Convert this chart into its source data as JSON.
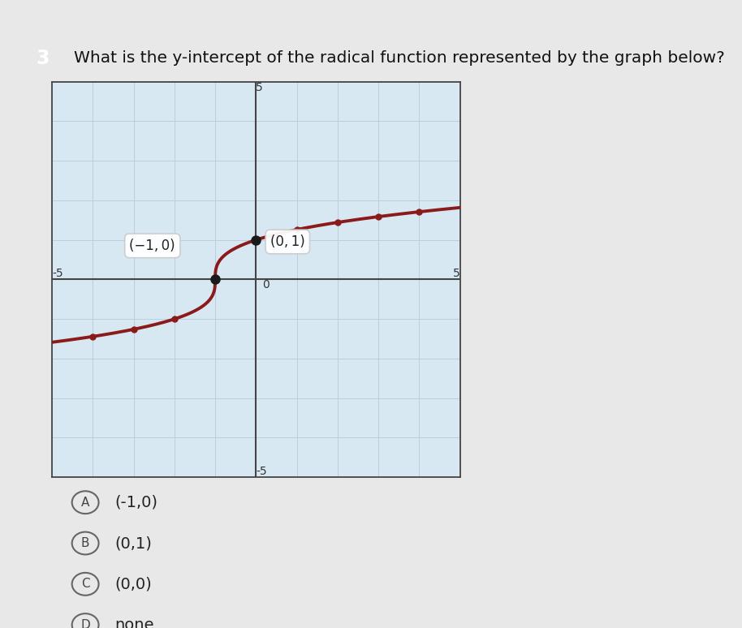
{
  "title": "What is the y-intercept of the radical function represented by the graph below?",
  "question_number": "3",
  "xlim": [
    -5,
    5
  ],
  "ylim": [
    -5,
    5
  ],
  "curve_color": "#8B1A1A",
  "grid_color": "#b8cfe0",
  "axis_color": "#444444",
  "bg_color": "#d8e8f2",
  "outer_bg": "#e8e8e8",
  "point1": [
    -1,
    0
  ],
  "point2": [
    0,
    1
  ],
  "label1": "(−1, 0)",
  "label2": "(0, 1)",
  "dot_color": "#1a1a1a",
  "choices": [
    {
      "letter": "A",
      "text": "(-1,0)"
    },
    {
      "letter": "B",
      "text": "(0,1)"
    },
    {
      "letter": "C",
      "text": "(0,0)"
    },
    {
      "letter": "D",
      "text": "none"
    }
  ],
  "title_fontsize": 14.5,
  "label_fontsize": 12,
  "choice_fontsize": 14,
  "axis_label_fontsize": 10,
  "qn_box_color": "#4a3020"
}
